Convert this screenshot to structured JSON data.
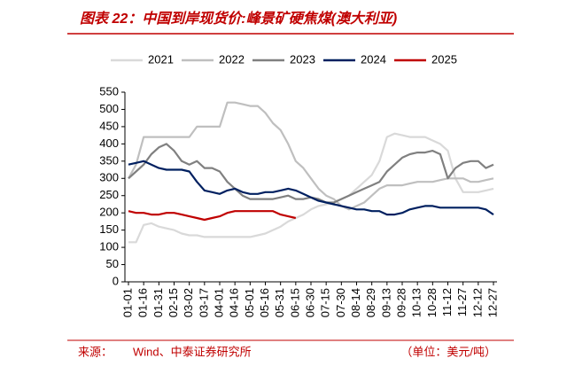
{
  "chart_data": {
    "type": "line",
    "title": "图表 22：中国到岸现货价:峰景矿硬焦煤(澳大利亚)",
    "source_label": "来源：",
    "source": "Wind、中泰证券研究所",
    "unit": "（单位：美元/吨）",
    "categories": [
      "01-01",
      null,
      "01-16",
      null,
      "01-31",
      null,
      "02-15",
      null,
      "03-02",
      null,
      "03-17",
      null,
      "04-01",
      null,
      "04-16",
      null,
      "05-01",
      null,
      "05-16",
      null,
      "05-31",
      null,
      "06-15",
      null,
      "06-30",
      null,
      "07-15",
      null,
      "07-30",
      null,
      "08-14",
      null,
      "08-29",
      null,
      "09-13",
      null,
      "09-28",
      null,
      "10-13",
      null,
      "10-28",
      null,
      "11-12",
      null,
      "11-27",
      null,
      "12-12",
      null,
      "12-27"
    ],
    "series": [
      {
        "name": "2021",
        "color": "#d9d9d9",
        "values": [
          115,
          115,
          165,
          170,
          160,
          155,
          150,
          140,
          135,
          135,
          130,
          130,
          130,
          130,
          130,
          130,
          130,
          135,
          140,
          150,
          160,
          175,
          185,
          195,
          210,
          220,
          225,
          230,
          240,
          250,
          270,
          290,
          310,
          350,
          420,
          430,
          425,
          420,
          420,
          420,
          410,
          400,
          380,
          300,
          260,
          260,
          260,
          265,
          270
        ]
      },
      {
        "name": "2022",
        "color": "#bfbfbf",
        "values": [
          300,
          340,
          420,
          420,
          420,
          420,
          420,
          420,
          420,
          450,
          450,
          450,
          450,
          520,
          520,
          515,
          510,
          510,
          490,
          460,
          440,
          400,
          350,
          330,
          300,
          270,
          250,
          240,
          220,
          210,
          220,
          230,
          250,
          270,
          280,
          280,
          280,
          285,
          290,
          290,
          290,
          295,
          300,
          300,
          300,
          290,
          290,
          295,
          300
        ]
      },
      {
        "name": "2023",
        "color": "#808080",
        "values": [
          300,
          320,
          340,
          370,
          390,
          400,
          380,
          350,
          340,
          350,
          330,
          330,
          320,
          290,
          270,
          250,
          240,
          240,
          240,
          240,
          245,
          250,
          240,
          240,
          245,
          240,
          230,
          230,
          240,
          250,
          260,
          270,
          280,
          290,
          320,
          340,
          360,
          370,
          375,
          375,
          380,
          370,
          300,
          330,
          345,
          350,
          350,
          330,
          340
        ]
      },
      {
        "name": "2024",
        "color": "#002060",
        "values": [
          340,
          345,
          350,
          340,
          330,
          325,
          325,
          325,
          320,
          290,
          265,
          260,
          255,
          265,
          270,
          260,
          255,
          255,
          260,
          260,
          265,
          270,
          265,
          255,
          245,
          235,
          230,
          225,
          220,
          215,
          210,
          210,
          205,
          205,
          195,
          195,
          200,
          210,
          215,
          220,
          220,
          215,
          215,
          215,
          215,
          215,
          215,
          210,
          195
        ]
      },
      {
        "name": "2025",
        "color": "#c00000",
        "values": [
          205,
          200,
          200,
          195,
          195,
          200,
          200,
          195,
          190,
          185,
          180,
          185,
          190,
          200,
          205,
          205,
          205,
          205,
          205,
          205,
          195,
          190,
          185,
          null,
          null,
          null,
          null,
          null,
          null,
          null,
          null,
          null,
          null,
          null,
          null,
          null,
          null,
          null,
          null,
          null,
          null,
          null,
          null,
          null,
          null,
          null,
          null,
          null,
          null
        ]
      }
    ],
    "ylim": [
      0,
      550
    ],
    "yticks": [
      0,
      50,
      100,
      150,
      200,
      250,
      300,
      350,
      400,
      450,
      500,
      550
    ],
    "legend": "top"
  }
}
